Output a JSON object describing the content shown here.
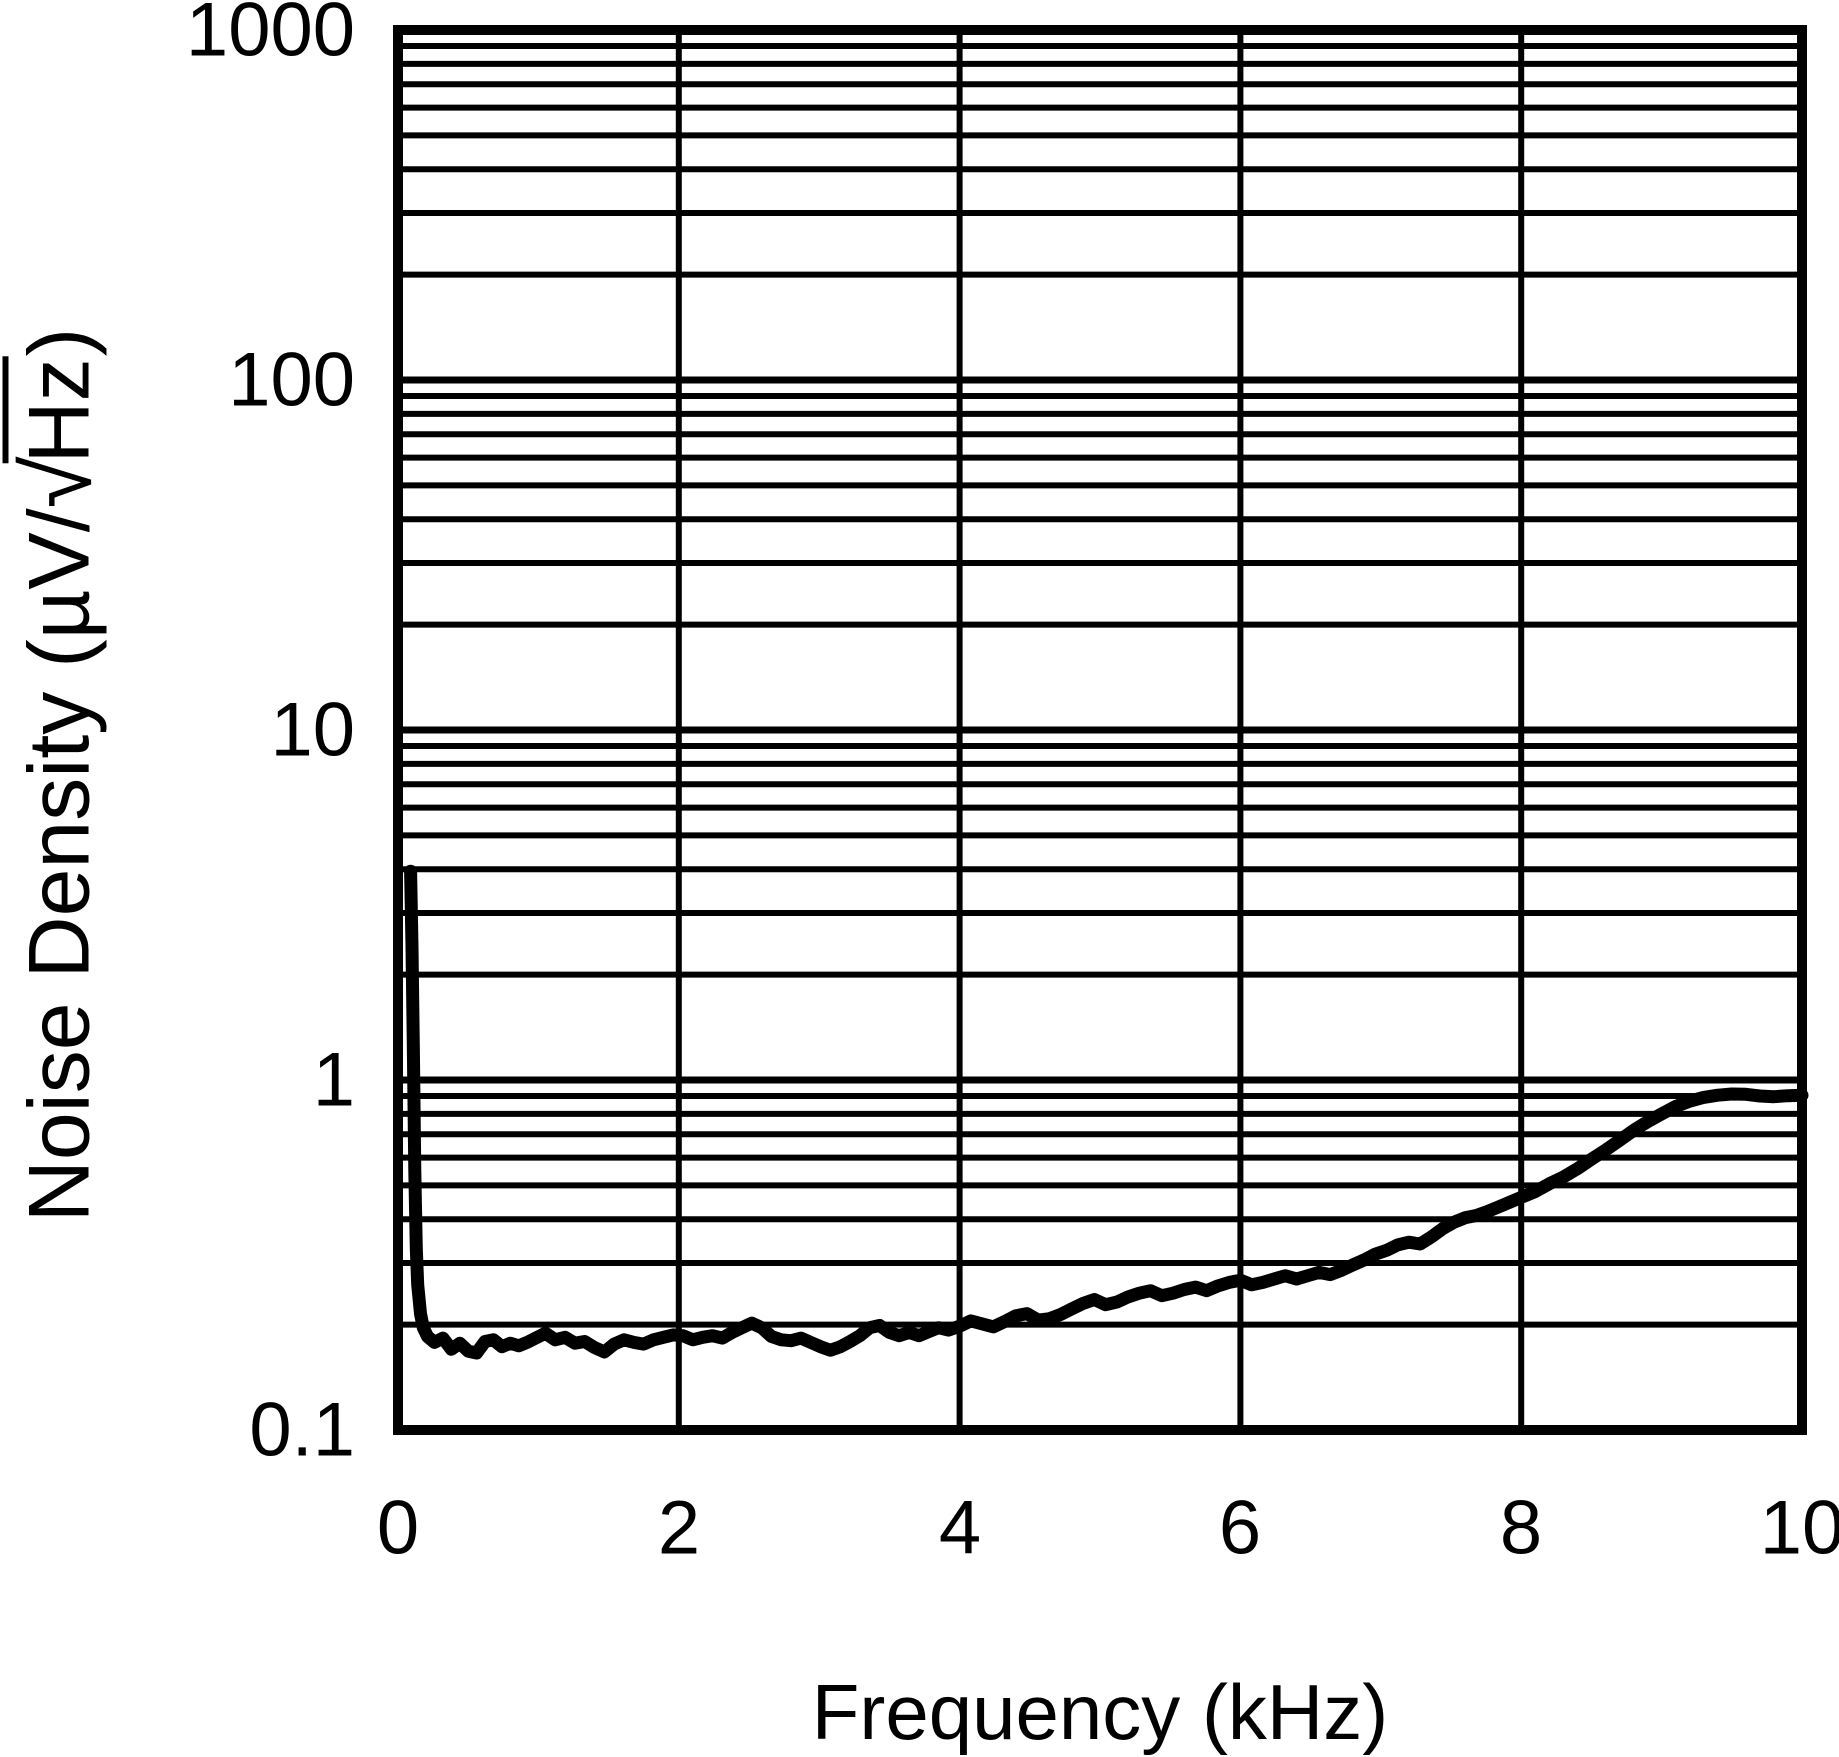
{
  "figure": {
    "background_color": "#ffffff",
    "line_color": "#000000",
    "grid_color": "#000000",
    "y_axis": {
      "scale": "log",
      "min": 0.1,
      "max": 1000,
      "ticks": [
        "1000",
        "100",
        "10",
        "1",
        "0.1"
      ],
      "title_prefix": "Noise Density (µV/",
      "sqrt_symbol": "√",
      "sqrt_argument": "Hz",
      "title_suffix": ")"
    },
    "x_axis": {
      "scale": "linear",
      "min": 0,
      "max": 10,
      "ticks": [
        "0",
        "2",
        "4",
        "6",
        "8",
        "10"
      ],
      "tick_values": [
        0,
        2,
        4,
        6,
        8,
        10
      ],
      "title": "Frequency (kHz)"
    }
  },
  "chart_data": {
    "type": "line",
    "title": "",
    "xlabel": "Frequency (kHz)",
    "ylabel": "Noise Density (uV/sqrt(Hz))",
    "x_range": [
      0,
      10
    ],
    "y_range": [
      0.1,
      1000
    ],
    "y_scale": "log",
    "x_gridline_values": [
      0,
      2,
      4,
      6,
      8,
      10
    ],
    "y_major_gridline_values": [
      0.1,
      1,
      10,
      100,
      1000
    ],
    "y_minor_gridline_decades": [
      0.1,
      1,
      10,
      100
    ],
    "legend": "none",
    "series": [
      {
        "name": "noise-density",
        "color": "#000000",
        "points": [
          [
            0.09,
            3.95
          ],
          [
            0.1,
            2.4
          ],
          [
            0.11,
            1.2
          ],
          [
            0.12,
            0.55
          ],
          [
            0.13,
            0.33
          ],
          [
            0.14,
            0.26
          ],
          [
            0.16,
            0.215
          ],
          [
            0.18,
            0.196
          ],
          [
            0.21,
            0.185
          ],
          [
            0.26,
            0.178
          ],
          [
            0.32,
            0.183
          ],
          [
            0.38,
            0.17
          ],
          [
            0.44,
            0.177
          ],
          [
            0.5,
            0.168
          ],
          [
            0.56,
            0.166
          ],
          [
            0.62,
            0.179
          ],
          [
            0.68,
            0.181
          ],
          [
            0.74,
            0.173
          ],
          [
            0.8,
            0.177
          ],
          [
            0.86,
            0.174
          ],
          [
            0.92,
            0.178
          ],
          [
            0.98,
            0.183
          ],
          [
            1.05,
            0.189
          ],
          [
            1.12,
            0.181
          ],
          [
            1.19,
            0.184
          ],
          [
            1.26,
            0.177
          ],
          [
            1.33,
            0.179
          ],
          [
            1.4,
            0.172
          ],
          [
            1.47,
            0.167
          ],
          [
            1.54,
            0.176
          ],
          [
            1.61,
            0.181
          ],
          [
            1.68,
            0.178
          ],
          [
            1.75,
            0.176
          ],
          [
            1.82,
            0.181
          ],
          [
            1.89,
            0.184
          ],
          [
            1.96,
            0.187
          ],
          [
            2.03,
            0.186
          ],
          [
            2.1,
            0.181
          ],
          [
            2.17,
            0.184
          ],
          [
            2.24,
            0.186
          ],
          [
            2.31,
            0.183
          ],
          [
            2.38,
            0.19
          ],
          [
            2.45,
            0.196
          ],
          [
            2.52,
            0.202
          ],
          [
            2.59,
            0.196
          ],
          [
            2.66,
            0.185
          ],
          [
            2.73,
            0.181
          ],
          [
            2.8,
            0.18
          ],
          [
            2.87,
            0.183
          ],
          [
            2.94,
            0.178
          ],
          [
            3.01,
            0.173
          ],
          [
            3.08,
            0.169
          ],
          [
            3.15,
            0.173
          ],
          [
            3.22,
            0.179
          ],
          [
            3.29,
            0.186
          ],
          [
            3.36,
            0.196
          ],
          [
            3.43,
            0.199
          ],
          [
            3.5,
            0.19
          ],
          [
            3.57,
            0.186
          ],
          [
            3.64,
            0.19
          ],
          [
            3.71,
            0.186
          ],
          [
            3.78,
            0.191
          ],
          [
            3.85,
            0.196
          ],
          [
            3.92,
            0.193
          ],
          [
            4.0,
            0.198
          ],
          [
            4.08,
            0.205
          ],
          [
            4.16,
            0.201
          ],
          [
            4.24,
            0.197
          ],
          [
            4.32,
            0.204
          ],
          [
            4.4,
            0.212
          ],
          [
            4.48,
            0.215
          ],
          [
            4.56,
            0.206
          ],
          [
            4.64,
            0.208
          ],
          [
            4.72,
            0.214
          ],
          [
            4.8,
            0.222
          ],
          [
            4.88,
            0.23
          ],
          [
            4.96,
            0.236
          ],
          [
            5.04,
            0.228
          ],
          [
            5.12,
            0.232
          ],
          [
            5.2,
            0.24
          ],
          [
            5.28,
            0.246
          ],
          [
            5.36,
            0.25
          ],
          [
            5.44,
            0.242
          ],
          [
            5.52,
            0.246
          ],
          [
            5.6,
            0.252
          ],
          [
            5.68,
            0.256
          ],
          [
            5.76,
            0.25
          ],
          [
            5.84,
            0.258
          ],
          [
            5.92,
            0.264
          ],
          [
            6.0,
            0.268
          ],
          [
            6.08,
            0.26
          ],
          [
            6.16,
            0.264
          ],
          [
            6.24,
            0.27
          ],
          [
            6.32,
            0.276
          ],
          [
            6.4,
            0.27
          ],
          [
            6.48,
            0.276
          ],
          [
            6.56,
            0.282
          ],
          [
            6.64,
            0.278
          ],
          [
            6.72,
            0.286
          ],
          [
            6.8,
            0.296
          ],
          [
            6.88,
            0.306
          ],
          [
            6.96,
            0.318
          ],
          [
            7.04,
            0.326
          ],
          [
            7.12,
            0.338
          ],
          [
            7.2,
            0.344
          ],
          [
            7.28,
            0.34
          ],
          [
            7.36,
            0.356
          ],
          [
            7.44,
            0.376
          ],
          [
            7.52,
            0.392
          ],
          [
            7.6,
            0.404
          ],
          [
            7.68,
            0.41
          ],
          [
            7.76,
            0.421
          ],
          [
            7.84,
            0.434
          ],
          [
            7.92,
            0.448
          ],
          [
            8.0,
            0.462
          ],
          [
            8.1,
            0.48
          ],
          [
            8.2,
            0.505
          ],
          [
            8.3,
            0.528
          ],
          [
            8.4,
            0.558
          ],
          [
            8.5,
            0.594
          ],
          [
            8.6,
            0.63
          ],
          [
            8.7,
            0.672
          ],
          [
            8.8,
            0.718
          ],
          [
            8.9,
            0.76
          ],
          [
            9.0,
            0.8
          ],
          [
            9.1,
            0.84
          ],
          [
            9.2,
            0.87
          ],
          [
            9.3,
            0.892
          ],
          [
            9.4,
            0.905
          ],
          [
            9.5,
            0.912
          ],
          [
            9.6,
            0.91
          ],
          [
            9.7,
            0.9
          ],
          [
            9.8,
            0.896
          ],
          [
            9.9,
            0.902
          ],
          [
            10.0,
            0.905
          ]
        ]
      }
    ]
  }
}
